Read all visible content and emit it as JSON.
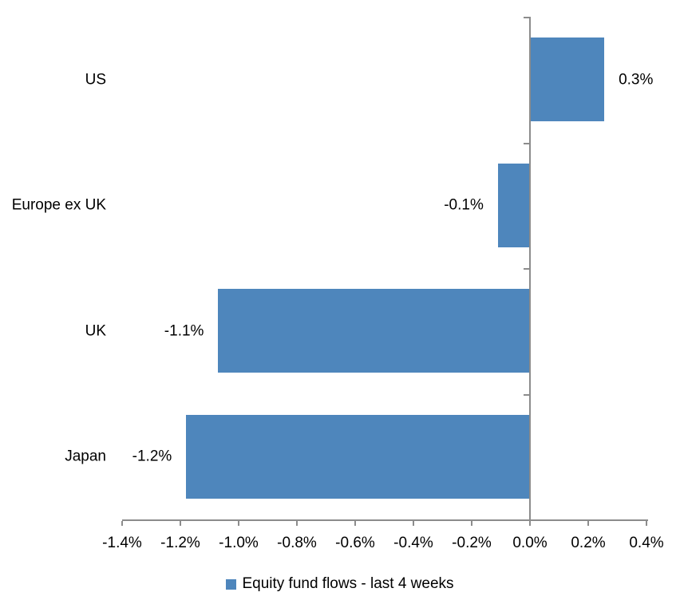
{
  "chart_data": {
    "type": "bar",
    "orientation": "horizontal",
    "title": "",
    "categories": [
      "US",
      "Europe ex UK",
      "UK",
      "Japan"
    ],
    "values": [
      0.3,
      -0.1,
      -1.1,
      -1.2
    ],
    "plotted_values": [
      0.255,
      -0.11,
      -1.07,
      -1.18
    ],
    "value_labels": [
      "0.3%",
      "-0.1%",
      "-1.1%",
      "-1.2%"
    ],
    "x_ticks": [
      -1.4,
      -1.2,
      -1.0,
      -0.8,
      -0.6,
      -0.4,
      -0.2,
      0.0,
      0.2,
      0.4
    ],
    "x_tick_labels": [
      "-1.4%",
      "-1.2%",
      "-1.0%",
      "-0.8%",
      "-0.6%",
      "-0.4%",
      "-0.2%",
      "0.0%",
      "0.2%",
      "0.4%"
    ],
    "xlim": [
      -1.4,
      0.4
    ],
    "grid": false,
    "legend": {
      "label": "Equity fund flows - last 4 weeks",
      "position": "bottom"
    },
    "colors": {
      "bar": "#4E86BC",
      "axis": "#8C8C8C",
      "text": "#000000",
      "background": "#FFFFFF"
    }
  }
}
